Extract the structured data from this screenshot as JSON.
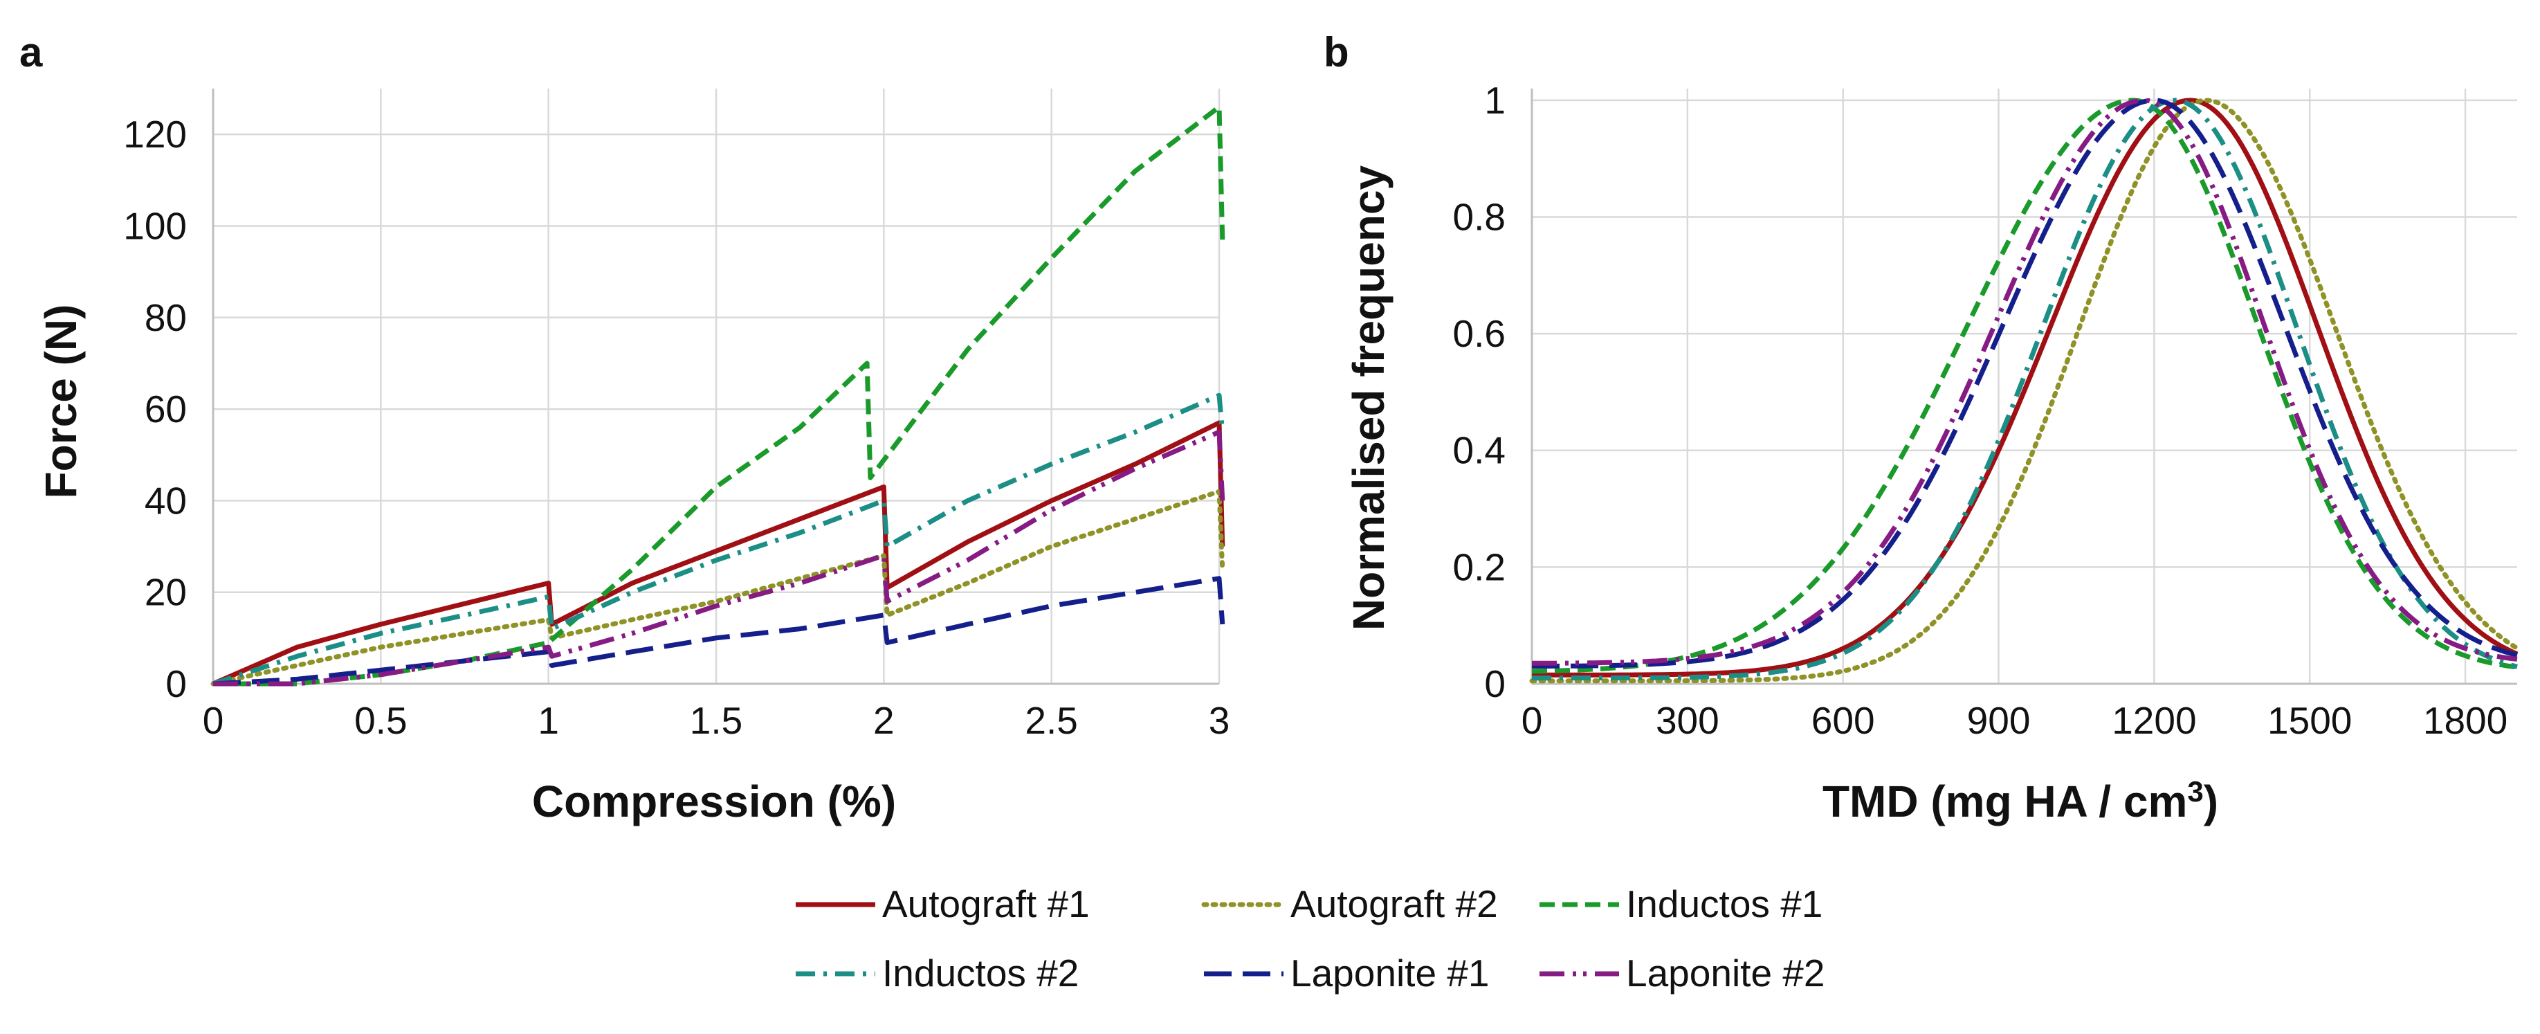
{
  "legend": [
    {
      "name": "Autograft #1",
      "color": "#a00f14",
      "dash": "solid"
    },
    {
      "name": "Autograft #2",
      "color": "#8f9227",
      "dash": "dot"
    },
    {
      "name": "Inductos #1",
      "color": "#1a9a2a",
      "dash": "dash"
    },
    {
      "name": "Inductos #2",
      "color": "#1b8e86",
      "dash": "dashdot"
    },
    {
      "name": "Laponite #1",
      "color": "#141f8c",
      "dash": "longdash"
    },
    {
      "name": "Laponite #2",
      "color": "#861b84",
      "dash": "longdashdotdot"
    }
  ],
  "chart_data": [
    {
      "type": "line",
      "panel": "a",
      "title": "",
      "xlabel": "Compression (%)",
      "ylabel": "Force (N)",
      "xlim": [
        0,
        3
      ],
      "ylim": [
        0,
        130
      ],
      "xticks": [
        0,
        0.5,
        1,
        1.5,
        2,
        2.5,
        3
      ],
      "xtick_labels": [
        "0",
        "0.5",
        "1",
        "1.5",
        "2",
        "2.5",
        "3"
      ],
      "yticks": [
        0,
        20,
        40,
        60,
        80,
        100,
        120
      ],
      "ytick_labels": [
        "0",
        "20",
        "40",
        "60",
        "80",
        "100",
        "120"
      ],
      "grid": true,
      "series": [
        {
          "name": "Autograft #1",
          "points": [
            [
              0,
              0
            ],
            [
              0.25,
              8
            ],
            [
              0.5,
              13
            ],
            [
              0.75,
              17.5
            ],
            [
              1,
              22
            ],
            [
              1.01,
              13
            ],
            [
              1.25,
              22
            ],
            [
              1.5,
              29
            ],
            [
              1.75,
              36
            ],
            [
              2,
              43
            ],
            [
              2.01,
              21
            ],
            [
              2.25,
              31
            ],
            [
              2.5,
              40
            ],
            [
              2.75,
              48
            ],
            [
              3,
              57
            ],
            [
              3.01,
              30
            ]
          ]
        },
        {
          "name": "Autograft #2",
          "points": [
            [
              0,
              0
            ],
            [
              0.25,
              4
            ],
            [
              0.5,
              8
            ],
            [
              0.75,
              11
            ],
            [
              1,
              14
            ],
            [
              1.01,
              10
            ],
            [
              1.25,
              14
            ],
            [
              1.5,
              18
            ],
            [
              1.75,
              23
            ],
            [
              2,
              28
            ],
            [
              2.01,
              15
            ],
            [
              2.25,
              22
            ],
            [
              2.5,
              30
            ],
            [
              2.75,
              36
            ],
            [
              3,
              42
            ],
            [
              3.01,
              25
            ]
          ]
        },
        {
          "name": "Inductos #1",
          "points": [
            [
              0,
              0
            ],
            [
              0.25,
              0
            ],
            [
              0.5,
              2
            ],
            [
              0.75,
              5
            ],
            [
              1,
              9
            ],
            [
              1.25,
              25
            ],
            [
              1.5,
              43
            ],
            [
              1.75,
              56
            ],
            [
              1.95,
              70
            ],
            [
              1.96,
              45
            ],
            [
              2.25,
              73
            ],
            [
              2.5,
              93
            ],
            [
              2.75,
              112
            ],
            [
              3,
              126
            ],
            [
              3.01,
              97
            ]
          ]
        },
        {
          "name": "Inductos #2",
          "points": [
            [
              0,
              0
            ],
            [
              0.25,
              6
            ],
            [
              0.5,
              11
            ],
            [
              0.75,
              15
            ],
            [
              1,
              19
            ],
            [
              1.01,
              12
            ],
            [
              1.25,
              20
            ],
            [
              1.5,
              27
            ],
            [
              1.75,
              33
            ],
            [
              2,
              40
            ],
            [
              2.01,
              30
            ],
            [
              2.25,
              40
            ],
            [
              2.5,
              48
            ],
            [
              2.75,
              55
            ],
            [
              3,
              63
            ],
            [
              3.01,
              55
            ]
          ]
        },
        {
          "name": "Laponite #1",
          "points": [
            [
              0,
              0
            ],
            [
              0.25,
              1
            ],
            [
              0.5,
              3
            ],
            [
              0.75,
              5
            ],
            [
              1,
              7
            ],
            [
              1.01,
              4
            ],
            [
              1.25,
              7
            ],
            [
              1.5,
              10
            ],
            [
              1.75,
              12
            ],
            [
              2,
              15
            ],
            [
              2.01,
              9
            ],
            [
              2.25,
              13
            ],
            [
              2.5,
              17
            ],
            [
              2.75,
              20
            ],
            [
              3,
              23
            ],
            [
              3.01,
              13
            ]
          ]
        },
        {
          "name": "Laponite #2",
          "points": [
            [
              0,
              0
            ],
            [
              0.25,
              0
            ],
            [
              0.5,
              2
            ],
            [
              0.75,
              5
            ],
            [
              1,
              8
            ],
            [
              1.01,
              6
            ],
            [
              1.25,
              11
            ],
            [
              1.5,
              17
            ],
            [
              1.75,
              22
            ],
            [
              2,
              28
            ],
            [
              2.01,
              18
            ],
            [
              2.25,
              27
            ],
            [
              2.5,
              38
            ],
            [
              2.75,
              47
            ],
            [
              3,
              55
            ],
            [
              3.01,
              40
            ]
          ]
        }
      ]
    },
    {
      "type": "line",
      "panel": "b",
      "title": "",
      "xlabel": "TMD (mg HA / cm³)",
      "ylabel": "Normalised frequency",
      "xlim": [
        0,
        1900
      ],
      "ylim": [
        0,
        1.02
      ],
      "xticks": [
        0,
        300,
        600,
        900,
        1200,
        1500,
        1800
      ],
      "xtick_labels": [
        "0",
        "300",
        "600",
        "900",
        "1200",
        "1500",
        "1800"
      ],
      "yticks": [
        0,
        0.2,
        0.4,
        0.6,
        0.8,
        1
      ],
      "ytick_labels": [
        "0",
        "0.2",
        "0.4",
        "0.6",
        "0.8",
        "1"
      ],
      "grid": true,
      "series": [
        {
          "name": "Autograft #1",
          "peak": 1270,
          "sigma_left": 270,
          "sigma_right": 245,
          "baseline": 0.015
        },
        {
          "name": "Autograft #2",
          "peak": 1300,
          "sigma_left": 245,
          "sigma_right": 250,
          "baseline": 0.005
        },
        {
          "name": "Inductos #1",
          "peak": 1160,
          "sigma_left": 320,
          "sigma_right": 240,
          "baseline": 0.02
        },
        {
          "name": "Inductos #2",
          "peak": 1240,
          "sigma_left": 255,
          "sigma_right": 235,
          "baseline": 0.01
        },
        {
          "name": "Laponite #1",
          "peak": 1200,
          "sigma_left": 290,
          "sigma_right": 250,
          "baseline": 0.03
        },
        {
          "name": "Laponite #2",
          "peak": 1180,
          "sigma_left": 285,
          "sigma_right": 230,
          "baseline": 0.035
        }
      ]
    }
  ]
}
